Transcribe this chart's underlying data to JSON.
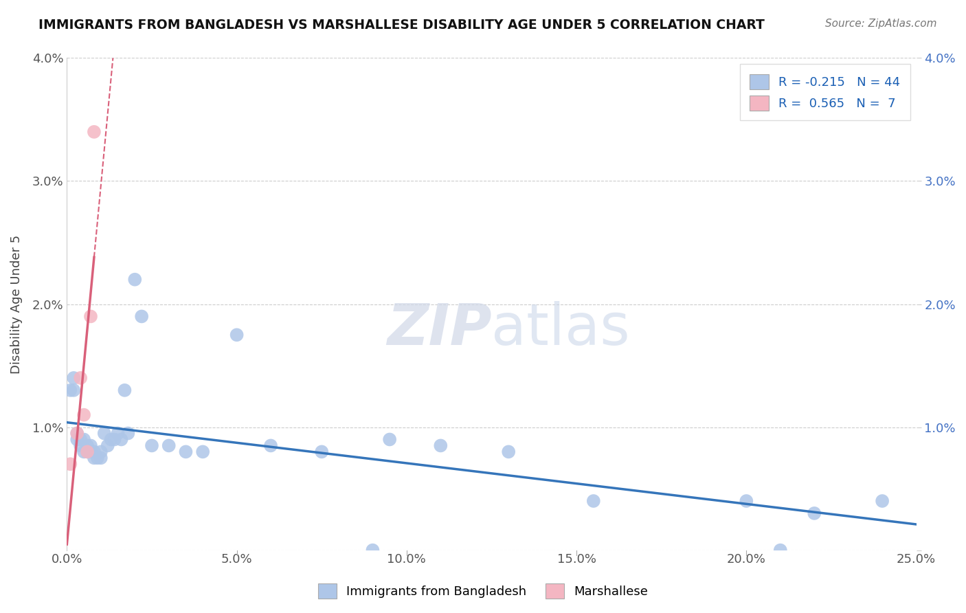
{
  "title": "IMMIGRANTS FROM BANGLADESH VS MARSHALLESE DISABILITY AGE UNDER 5 CORRELATION CHART",
  "source": "Source: ZipAtlas.com",
  "ylabel": "Disability Age Under 5",
  "xlim": [
    0.0,
    0.25
  ],
  "ylim": [
    0.0,
    0.04
  ],
  "xticks": [
    0.0,
    0.05,
    0.1,
    0.15,
    0.2,
    0.25
  ],
  "yticks": [
    0.0,
    0.01,
    0.02,
    0.03,
    0.04
  ],
  "ytick_labels_left": [
    "",
    "1.0%",
    "2.0%",
    "3.0%",
    "4.0%"
  ],
  "ytick_labels_right": [
    "",
    "1.0%",
    "2.0%",
    "3.0%",
    "4.0%"
  ],
  "xtick_labels": [
    "0.0%",
    "5.0%",
    "10.0%",
    "15.0%",
    "20.0%",
    "25.0%"
  ],
  "bangladesh_R": -0.215,
  "bangladesh_N": 44,
  "marshallese_R": 0.565,
  "marshallese_N": 7,
  "bangladesh_color": "#aec6e8",
  "marshallese_color": "#f4b6c2",
  "trend_bangladesh_color": "#3575ba",
  "trend_marshallese_color": "#d9607a",
  "watermark": "ZIPatlas",
  "background_color": "#ffffff",
  "bangladesh_x": [
    0.001,
    0.002,
    0.002,
    0.003,
    0.003,
    0.004,
    0.004,
    0.005,
    0.005,
    0.006,
    0.006,
    0.007,
    0.007,
    0.008,
    0.008,
    0.009,
    0.01,
    0.01,
    0.011,
    0.012,
    0.013,
    0.014,
    0.015,
    0.016,
    0.017,
    0.018,
    0.02,
    0.022,
    0.025,
    0.03,
    0.035,
    0.04,
    0.05,
    0.06,
    0.075,
    0.09,
    0.095,
    0.11,
    0.13,
    0.155,
    0.2,
    0.21,
    0.22,
    0.24
  ],
  "bangladesh_y": [
    0.013,
    0.013,
    0.014,
    0.009,
    0.0095,
    0.0085,
    0.009,
    0.008,
    0.009,
    0.008,
    0.0085,
    0.008,
    0.0085,
    0.0075,
    0.008,
    0.0075,
    0.0075,
    0.008,
    0.0095,
    0.0085,
    0.009,
    0.009,
    0.0095,
    0.009,
    0.013,
    0.0095,
    0.022,
    0.019,
    0.0085,
    0.0085,
    0.008,
    0.008,
    0.0175,
    0.0085,
    0.008,
    0.0,
    0.009,
    0.0085,
    0.008,
    0.004,
    0.004,
    0.0,
    0.003,
    0.004
  ],
  "marshallese_x": [
    0.001,
    0.003,
    0.004,
    0.005,
    0.006,
    0.007,
    0.008
  ],
  "marshallese_y": [
    0.007,
    0.0095,
    0.014,
    0.011,
    0.008,
    0.019,
    0.034
  ]
}
